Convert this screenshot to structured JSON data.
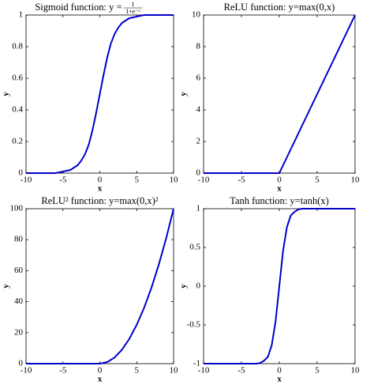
{
  "chart_data": [
    {
      "type": "line",
      "title": "Sigmoid function:  y =",
      "title_fraction": {
        "numerator": "1",
        "denominator": "1+e⁻ˣ"
      },
      "x_label": "x",
      "y_label": "y",
      "x": [
        -10,
        -8,
        -6,
        -5,
        -4,
        -3,
        -2.5,
        -2,
        -1.5,
        -1,
        -0.5,
        0,
        0.5,
        1,
        1.5,
        2,
        2.5,
        3,
        4,
        5,
        6,
        8,
        10
      ],
      "values": [
        0,
        0,
        0,
        0.01,
        0.02,
        0.05,
        0.08,
        0.12,
        0.18,
        0.27,
        0.38,
        0.5,
        0.62,
        0.73,
        0.82,
        0.88,
        0.92,
        0.95,
        0.98,
        0.99,
        1,
        1,
        1
      ],
      "color": "#0000cc",
      "xlim": [
        -10,
        10
      ],
      "ylim": [
        0,
        1
      ],
      "xticks": [
        -10,
        -5,
        0,
        5,
        10
      ],
      "yticks": [
        0,
        0.2,
        0.4,
        0.6,
        0.8,
        1
      ]
    },
    {
      "type": "line",
      "title": "ReLU function: y=max(0,x)",
      "x_label": "x",
      "y_label": "y",
      "x": [
        -10,
        0,
        10
      ],
      "values": [
        0,
        0,
        10
      ],
      "color": "#0000cc",
      "xlim": [
        -10,
        10
      ],
      "ylim": [
        0,
        10
      ],
      "xticks": [
        -10,
        -5,
        0,
        5,
        10
      ],
      "yticks": [
        0,
        2,
        4,
        6,
        8,
        10
      ]
    },
    {
      "type": "line",
      "title": "ReLU² function: y=max(0,x)²",
      "x_label": "x",
      "y_label": "y",
      "x": [
        -10,
        0,
        1,
        2,
        3,
        4,
        5,
        6,
        7,
        8,
        9,
        10
      ],
      "values": [
        0,
        0,
        1,
        4,
        9,
        16,
        25,
        36,
        49,
        64,
        81,
        100
      ],
      "color": "#0000cc",
      "xlim": [
        -10,
        10
      ],
      "ylim": [
        0,
        100
      ],
      "xticks": [
        -10,
        -5,
        0,
        5,
        10
      ],
      "yticks": [
        0,
        20,
        40,
        60,
        80,
        100
      ]
    },
    {
      "type": "line",
      "title": "Tanh function: y=tanh(x)",
      "x_label": "x",
      "y_label": "y",
      "x": [
        -10,
        -5,
        -3,
        -2.5,
        -2,
        -1.5,
        -1,
        -0.5,
        0,
        0.5,
        1,
        1.5,
        2,
        2.5,
        3,
        5,
        10
      ],
      "values": [
        -1,
        -1,
        -1,
        -0.99,
        -0.96,
        -0.91,
        -0.76,
        -0.46,
        0,
        0.46,
        0.76,
        0.91,
        0.96,
        0.99,
        1,
        1,
        1
      ],
      "color": "#0000cc",
      "xlim": [
        -10,
        10
      ],
      "ylim": [
        -1,
        1
      ],
      "xticks": [
        -10,
        -5,
        0,
        5,
        10
      ],
      "yticks": [
        -1,
        -0.5,
        0,
        0.5,
        1
      ]
    }
  ]
}
